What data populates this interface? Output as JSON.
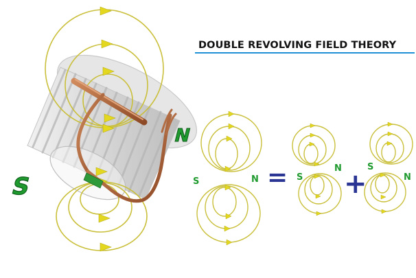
{
  "title": "DOUBLE REVOLVING FIELD THEORY",
  "colors": {
    "field_line": "#c9bf3a",
    "arrow": "#e3d81f",
    "pole_label": "#1f9a2e",
    "operator": "#2b3594",
    "title_rule": "#1e90d6",
    "coil": "#b3663a"
  },
  "stator": {
    "south_label": "S",
    "north_label": "N"
  },
  "equation": {
    "left": {
      "south_label": "S",
      "north_label": "N"
    },
    "equals_symbol": "=",
    "first_field": {
      "south_label": "S",
      "north_label": "N"
    },
    "plus_symbol": "+",
    "second_field": {
      "south_label": "S",
      "north_label": "N"
    }
  }
}
